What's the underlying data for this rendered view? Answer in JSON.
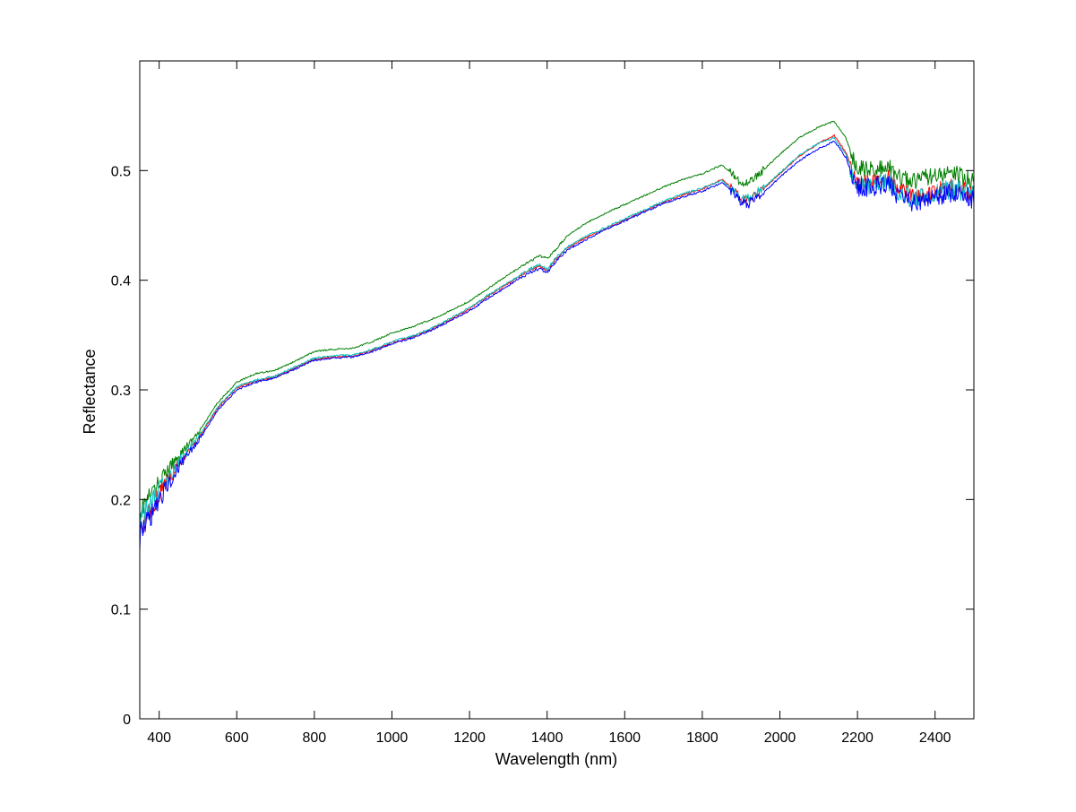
{
  "chart_data": {
    "type": "line",
    "title": "",
    "xlabel": "Wavelength (nm)",
    "ylabel": "Reflectance",
    "xlim": [
      350,
      2500
    ],
    "ylim": [
      0,
      0.6
    ],
    "xticks": [
      400,
      600,
      800,
      1000,
      1200,
      1400,
      1600,
      1800,
      2000,
      2200,
      2400
    ],
    "yticks": [
      0,
      0.1,
      0.2,
      0.3,
      0.4,
      0.5
    ],
    "grid": false,
    "legend": "none",
    "box": true,
    "series": [
      {
        "color": "#007f00",
        "x": [
          350,
          400,
          450,
          500,
          550,
          600,
          650,
          700,
          750,
          800,
          850,
          900,
          950,
          1000,
          1050,
          1100,
          1150,
          1200,
          1250,
          1300,
          1350,
          1380,
          1400,
          1420,
          1450,
          1500,
          1550,
          1600,
          1650,
          1700,
          1750,
          1800,
          1850,
          1880,
          1900,
          1920,
          1950,
          2000,
          2050,
          2100,
          2140,
          2170,
          2190,
          2200,
          2250,
          2280,
          2300,
          2350,
          2400,
          2450,
          2500
        ],
        "y": [
          0.19,
          0.215,
          0.24,
          0.26,
          0.288,
          0.307,
          0.315,
          0.318,
          0.326,
          0.335,
          0.337,
          0.338,
          0.344,
          0.352,
          0.357,
          0.364,
          0.372,
          0.381,
          0.393,
          0.405,
          0.416,
          0.422,
          0.42,
          0.427,
          0.44,
          0.452,
          0.461,
          0.469,
          0.477,
          0.485,
          0.492,
          0.497,
          0.505,
          0.497,
          0.488,
          0.49,
          0.498,
          0.515,
          0.53,
          0.54,
          0.545,
          0.53,
          0.51,
          0.502,
          0.5,
          0.505,
          0.495,
          0.49,
          0.497,
          0.498,
          0.49
        ],
        "noise": 0.006
      },
      {
        "color": "#ff0000",
        "x": [
          350,
          400,
          450,
          500,
          550,
          600,
          650,
          700,
          750,
          800,
          850,
          900,
          950,
          1000,
          1050,
          1100,
          1150,
          1200,
          1250,
          1300,
          1350,
          1380,
          1400,
          1420,
          1450,
          1500,
          1550,
          1600,
          1650,
          1700,
          1750,
          1800,
          1850,
          1880,
          1900,
          1920,
          1950,
          2000,
          2050,
          2100,
          2140,
          2170,
          2190,
          2200,
          2250,
          2280,
          2300,
          2350,
          2400,
          2450,
          2500
        ],
        "y": [
          0.172,
          0.205,
          0.232,
          0.255,
          0.283,
          0.302,
          0.308,
          0.312,
          0.32,
          0.328,
          0.33,
          0.331,
          0.336,
          0.343,
          0.348,
          0.355,
          0.364,
          0.374,
          0.386,
          0.397,
          0.408,
          0.413,
          0.409,
          0.418,
          0.429,
          0.439,
          0.447,
          0.455,
          0.463,
          0.471,
          0.478,
          0.483,
          0.492,
          0.483,
          0.474,
          0.474,
          0.481,
          0.497,
          0.513,
          0.525,
          0.532,
          0.517,
          0.497,
          0.487,
          0.49,
          0.493,
          0.483,
          0.475,
          0.482,
          0.485,
          0.478
        ],
        "noise": 0.006
      },
      {
        "color": "#00bfbf",
        "x": [
          350,
          400,
          450,
          500,
          550,
          600,
          650,
          700,
          750,
          800,
          850,
          900,
          950,
          1000,
          1050,
          1100,
          1150,
          1200,
          1250,
          1300,
          1350,
          1380,
          1400,
          1420,
          1450,
          1500,
          1550,
          1600,
          1650,
          1700,
          1750,
          1800,
          1850,
          1880,
          1900,
          1920,
          1950,
          2000,
          2050,
          2100,
          2140,
          2170,
          2190,
          2200,
          2250,
          2280,
          2300,
          2350,
          2400,
          2450,
          2500
        ],
        "y": [
          0.18,
          0.208,
          0.234,
          0.256,
          0.284,
          0.303,
          0.309,
          0.313,
          0.321,
          0.329,
          0.331,
          0.332,
          0.337,
          0.344,
          0.349,
          0.356,
          0.365,
          0.375,
          0.387,
          0.398,
          0.409,
          0.414,
          0.41,
          0.419,
          0.43,
          0.44,
          0.448,
          0.456,
          0.464,
          0.472,
          0.479,
          0.484,
          0.491,
          0.482,
          0.473,
          0.475,
          0.482,
          0.498,
          0.514,
          0.525,
          0.53,
          0.515,
          0.495,
          0.485,
          0.488,
          0.49,
          0.482,
          0.473,
          0.48,
          0.483,
          0.478
        ],
        "noise": 0.007
      },
      {
        "color": "#0000ff",
        "x": [
          350,
          400,
          450,
          500,
          550,
          600,
          650,
          700,
          750,
          800,
          850,
          900,
          950,
          1000,
          1050,
          1100,
          1150,
          1200,
          1250,
          1300,
          1350,
          1380,
          1400,
          1420,
          1450,
          1500,
          1550,
          1600,
          1650,
          1700,
          1750,
          1800,
          1850,
          1880,
          1900,
          1920,
          1950,
          2000,
          2050,
          2100,
          2140,
          2170,
          2190,
          2200,
          2250,
          2280,
          2300,
          2350,
          2400,
          2450,
          2500
        ],
        "y": [
          0.165,
          0.2,
          0.23,
          0.253,
          0.281,
          0.3,
          0.307,
          0.311,
          0.319,
          0.327,
          0.329,
          0.33,
          0.335,
          0.342,
          0.347,
          0.354,
          0.363,
          0.372,
          0.384,
          0.395,
          0.406,
          0.411,
          0.407,
          0.416,
          0.427,
          0.437,
          0.446,
          0.454,
          0.462,
          0.47,
          0.476,
          0.481,
          0.489,
          0.48,
          0.471,
          0.47,
          0.477,
          0.494,
          0.509,
          0.52,
          0.527,
          0.512,
          0.492,
          0.484,
          0.486,
          0.488,
          0.479,
          0.47,
          0.477,
          0.48,
          0.474
        ],
        "noise": 0.007
      }
    ]
  }
}
